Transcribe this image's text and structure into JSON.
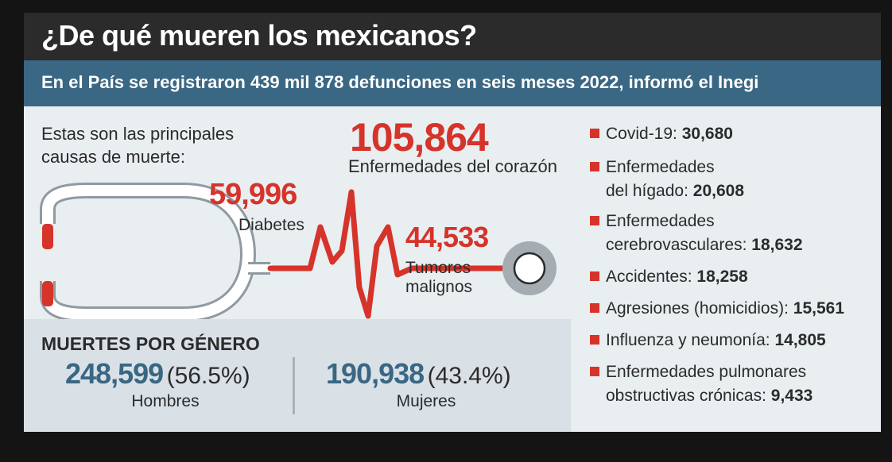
{
  "header": {
    "title": "¿De qué mueren los mexicanos?",
    "subtitle": "En el País se registraron 439 mil 878 defunciones en seis meses 2022, informó el Inegi"
  },
  "intro": {
    "line1": "Estas son las principales",
    "line2": "causas de muerte:"
  },
  "colors": {
    "accent": "#d6332a",
    "blue": "#3a6783",
    "dark": "#2b2b2b",
    "background": "#e9eef1"
  },
  "chart_data": {
    "type": "table",
    "title": "¿De qué mueren los mexicanos?",
    "subtitle": "En el País se registraron 439 mil 878 defunciones en seis meses 2022, informó el Inegi",
    "main_causes": [
      {
        "name": "Enfermedades del corazón",
        "value": 105864,
        "display": "105,864"
      },
      {
        "name": "Diabetes",
        "value": 59996,
        "display": "59,996"
      },
      {
        "name": "Tumores malignos",
        "value": 44533,
        "display": "44,533"
      }
    ],
    "other_causes": [
      {
        "name": "Covid-19:",
        "value": 30680,
        "display": "30,680"
      },
      {
        "name1": "Enfermedades",
        "name2": "del hígado:",
        "value": 20608,
        "display": "20,608"
      },
      {
        "name1": "Enfermedades",
        "name2": "cerebrovasculares:",
        "value": 18632,
        "display": "18,632"
      },
      {
        "name": "Accidentes:",
        "value": 18258,
        "display": "18,258"
      },
      {
        "name": "Agresiones (homicidios):",
        "value": 15561,
        "display": "15,561"
      },
      {
        "name": "Influenza y neumonía:",
        "value": 14805,
        "display": "14,805"
      },
      {
        "name1": "Enfermedades pulmonares",
        "name2": "obstructivas crónicas:",
        "value": 9433,
        "display": "9,433"
      }
    ],
    "gender": {
      "title": "MUERTES POR GÉNERO",
      "men": {
        "label": "Hombres",
        "value": 248599,
        "display": "248,599",
        "pct": "(56.5%)"
      },
      "women": {
        "label": "Mujeres",
        "value": 190938,
        "display": "190,938",
        "pct": "(43.4%)"
      }
    }
  }
}
